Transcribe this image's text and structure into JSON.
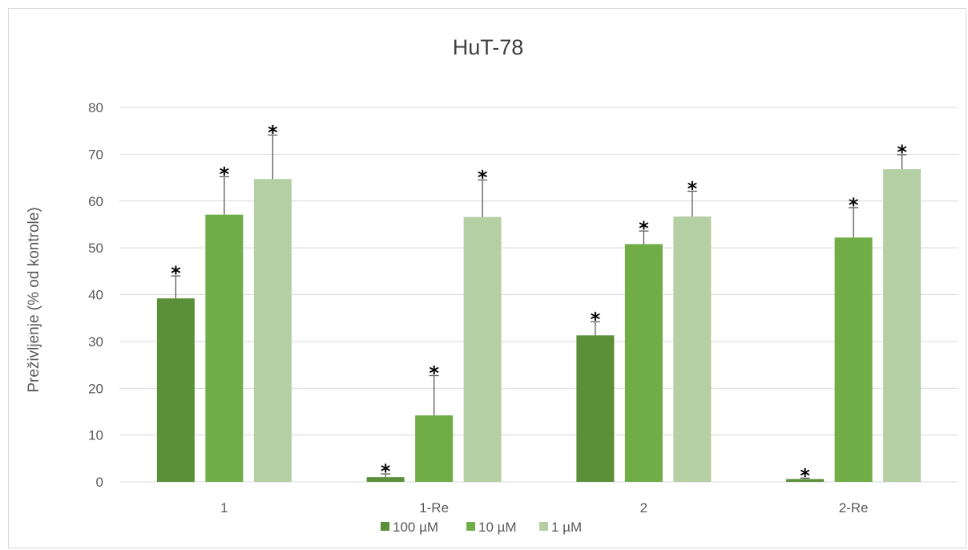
{
  "chart_data": {
    "type": "bar",
    "title": "HuT-78",
    "xlabel": "",
    "ylabel": "Preživljenje (% od kontrole)",
    "ylim": [
      0,
      80
    ],
    "yticks": [
      0,
      10,
      20,
      30,
      40,
      50,
      60,
      70,
      80
    ],
    "categories": [
      "1",
      "1-Re",
      "2",
      "2-Re"
    ],
    "grid": true,
    "legend_position": "bottom",
    "significance_marker": "*",
    "series": [
      {
        "name": "100 µM",
        "color": "#5b8f38",
        "values": [
          39.2,
          1.0,
          31.3,
          0.6
        ],
        "errors": [
          4.8,
          0.7,
          2.9,
          0.2
        ],
        "significant": [
          true,
          true,
          true,
          true
        ]
      },
      {
        "name": "10 µM",
        "color": "#70ad47",
        "values": [
          57.1,
          14.2,
          50.8,
          52.2
        ],
        "errors": [
          8.1,
          8.5,
          2.8,
          6.4
        ],
        "significant": [
          true,
          true,
          true,
          true
        ]
      },
      {
        "name": "1 µM",
        "color": "#b5cfa5",
        "values": [
          64.7,
          56.6,
          56.7,
          66.8
        ],
        "errors": [
          9.4,
          7.9,
          5.4,
          3.1
        ],
        "significant": [
          true,
          true,
          true,
          true
        ]
      }
    ]
  }
}
